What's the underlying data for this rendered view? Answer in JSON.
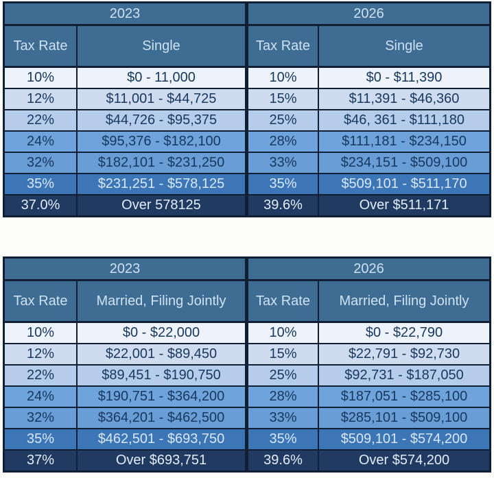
{
  "colors": {
    "page_bg": "#fdfdfb",
    "border": "#101f33",
    "header_bg": "#3e6c92",
    "header_text": "#cfe2f3",
    "row_bg": [
      "#eef3fb",
      "#cfdcf0",
      "#b5cdeb",
      "#6ea4db",
      "#689dd6",
      "#3c76b7",
      "#203a62"
    ],
    "row_text": [
      "#17375e",
      "#17375e",
      "#17375e",
      "#17375e",
      "#17375e",
      "#d9e8f7",
      "#e3edf8"
    ]
  },
  "tables": [
    {
      "id": "single",
      "halves": [
        {
          "year": "2023",
          "rate_header": "Tax Rate",
          "status": "Single",
          "rows": [
            {
              "rate": "10%",
              "bracket": "$0 - 11,000"
            },
            {
              "rate": "12%",
              "bracket": "$11,001 - $44,725"
            },
            {
              "rate": "22%",
              "bracket": "$44,726 - $95,375"
            },
            {
              "rate": "24%",
              "bracket": "$95,376 - $182,100"
            },
            {
              "rate": "32%",
              "bracket": "$182,101 - $231,250"
            },
            {
              "rate": "35%",
              "bracket": "$231,251 - $578,125"
            },
            {
              "rate": "37.0%",
              "bracket": "Over 578125"
            }
          ]
        },
        {
          "year": "2026",
          "rate_header": "Tax Rate",
          "status": "Single",
          "rows": [
            {
              "rate": "10%",
              "bracket": "$0 - $11,390"
            },
            {
              "rate": "15%",
              "bracket": "$11,391 - $46,360"
            },
            {
              "rate": "25%",
              "bracket": "$46, 361 - $111,180"
            },
            {
              "rate": "28%",
              "bracket": "$111,181 - $234,150"
            },
            {
              "rate": "33%",
              "bracket": "$234,151 - $509,100"
            },
            {
              "rate": "35%",
              "bracket": "$509,101 - $511,170"
            },
            {
              "rate": "39.6%",
              "bracket": "Over $511,171"
            }
          ]
        }
      ]
    },
    {
      "id": "married",
      "halves": [
        {
          "year": "2023",
          "rate_header": "Tax Rate",
          "status": "Married, Filing Jointly",
          "rows": [
            {
              "rate": "10%",
              "bracket": "$0 - $22,000"
            },
            {
              "rate": "12%",
              "bracket": "$22,001 - $89,450"
            },
            {
              "rate": "22%",
              "bracket": "$89,451 - $190,750"
            },
            {
              "rate": "24%",
              "bracket": "$190,751 - $364,200"
            },
            {
              "rate": "32%",
              "bracket": "$364,201 - $462,500"
            },
            {
              "rate": "35%",
              "bracket": "$462,501 - $693,750"
            },
            {
              "rate": "37%",
              "bracket": "Over $693,751"
            }
          ]
        },
        {
          "year": "2026",
          "rate_header": "Tax Rate",
          "status": "Married, Filing Jointly",
          "rows": [
            {
              "rate": "10%",
              "bracket": "$0 - $22,790"
            },
            {
              "rate": "15%",
              "bracket": "$22,791 - $92,730"
            },
            {
              "rate": "25%",
              "bracket": "$92,731 - $187,050"
            },
            {
              "rate": "28%",
              "bracket": "$187,051 - $285,100"
            },
            {
              "rate": "33%",
              "bracket": "$285,101 - $509,100"
            },
            {
              "rate": "35%",
              "bracket": "$509,101 - $574,200"
            },
            {
              "rate": "39.6%",
              "bracket": "Over $574,200"
            }
          ]
        }
      ]
    }
  ],
  "chart_data": [
    {
      "type": "table",
      "year_headers": [
        "2023",
        "2026"
      ],
      "column_headers": [
        "Tax Rate",
        "Single",
        "Tax Rate",
        "Single"
      ],
      "rows": [
        [
          "10%",
          "$0 - 11,000",
          "10%",
          "$0 - $11,390"
        ],
        [
          "12%",
          "$11,001 - $44,725",
          "15%",
          "$11,391 - $46,360"
        ],
        [
          "22%",
          "$44,726 - $95,375",
          "25%",
          "$46, 361 - $111,180"
        ],
        [
          "24%",
          "$95,376 - $182,100",
          "28%",
          "$111,181 - $234,150"
        ],
        [
          "32%",
          "$182,101 - $231,250",
          "33%",
          "$234,151 - $509,100"
        ],
        [
          "35%",
          "$231,251 - $578,125",
          "35%",
          "$509,101 - $511,170"
        ],
        [
          "37.0%",
          "Over 578125",
          "39.6%",
          "Over $511,171"
        ]
      ]
    },
    {
      "type": "table",
      "year_headers": [
        "2023",
        "2026"
      ],
      "column_headers": [
        "Tax Rate",
        "Married, Filing Jointly",
        "Tax Rate",
        "Married, Filing Jointly"
      ],
      "rows": [
        [
          "10%",
          "$0 - $22,000",
          "10%",
          "$0 - $22,790"
        ],
        [
          "12%",
          "$22,001 - $89,450",
          "15%",
          "$22,791 - $92,730"
        ],
        [
          "22%",
          "$89,451 - $190,750",
          "25%",
          "$92,731 - $187,050"
        ],
        [
          "24%",
          "$190,751 - $364,200",
          "28%",
          "$187,051 - $285,100"
        ],
        [
          "32%",
          "$364,201 - $462,500",
          "33%",
          "$285,101 - $509,100"
        ],
        [
          "35%",
          "$462,501 - $693,750",
          "35%",
          "$509,101 - $574,200"
        ],
        [
          "37%",
          "Over $693,751",
          "39.6%",
          "Over $574,200"
        ]
      ]
    }
  ]
}
